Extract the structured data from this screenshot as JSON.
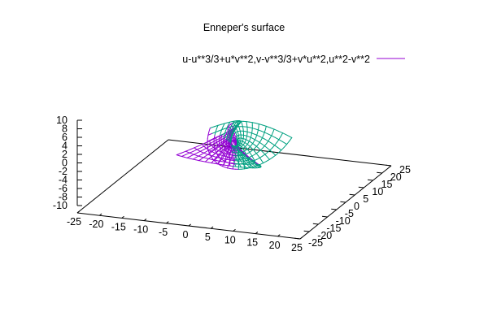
{
  "chart_data": {
    "type": "surface-3d",
    "title": "Enneper's surface",
    "legend": {
      "placement": "top-right",
      "label": "u-u**3/3+u*v**2,v-v**3/3+v*u**2,u**2-v**2",
      "color": "#9400d3"
    },
    "series": [
      {
        "name": "u-u**3/3+u*v**2,v-v**3/3+v*u**2,u**2-v**2",
        "x_expr": "u-u**3/3+u*v**2",
        "y_expr": "v-v**3/3+v*u**2",
        "z_expr": "u**2-v**2",
        "u_range": [
          -2,
          2
        ],
        "v_range": [
          -2,
          2
        ],
        "isosamples": 20,
        "top_color": "#9400d3",
        "bottom_color": "#00a080"
      }
    ],
    "xlim": [
      -25,
      25
    ],
    "ylim": [
      -25,
      25
    ],
    "zlim": [
      -10,
      10
    ],
    "x_ticks": [
      -25,
      -20,
      -15,
      -10,
      -5,
      0,
      5,
      10,
      15,
      20,
      25
    ],
    "y_ticks": [
      -25,
      -20,
      -15,
      -10,
      -5,
      0,
      5,
      10,
      15,
      20,
      25
    ],
    "z_ticks": [
      10,
      8,
      6,
      4,
      2,
      0,
      -2,
      -4,
      -6,
      -8,
      -10
    ],
    "grid": false
  }
}
